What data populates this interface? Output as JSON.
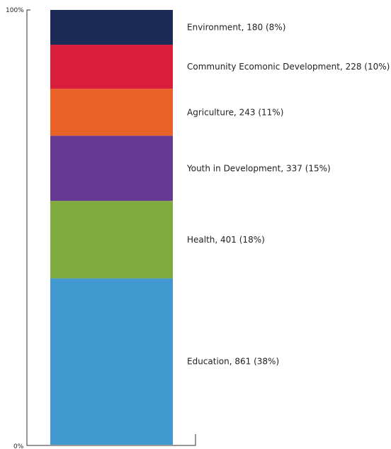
{
  "chart_data": {
    "type": "bar",
    "stacked": true,
    "orientation": "vertical",
    "ylim": [
      0,
      100
    ],
    "y_ticks": [
      "0%",
      "100%"
    ],
    "grid": false,
    "legend": "none",
    "segments": [
      {
        "label": "Education, 861 (38%)",
        "name": "Education",
        "value": 861,
        "percent": 38,
        "color": "#4299d0"
      },
      {
        "label": "Health, 401 (18%)",
        "name": "Health",
        "value": 401,
        "percent": 18,
        "color": "#80ab3e"
      },
      {
        "label": "Youth in Development, 337 (15%)",
        "name": "Youth in Development",
        "value": 337,
        "percent": 15,
        "color": "#663a93"
      },
      {
        "label": "Agriculture, 243 (11%)",
        "name": "Agriculture",
        "value": 243,
        "percent": 11,
        "color": "#ea6227"
      },
      {
        "label": "Community Ecomonic Development, 228 (10%)",
        "name": "Community Ecomonic Development",
        "value": 228,
        "percent": 10,
        "color": "#d81e3a"
      },
      {
        "label": "Environment, 180 (8%)",
        "name": "Environment",
        "value": 180,
        "percent": 8,
        "color": "#1c2a57"
      }
    ]
  }
}
